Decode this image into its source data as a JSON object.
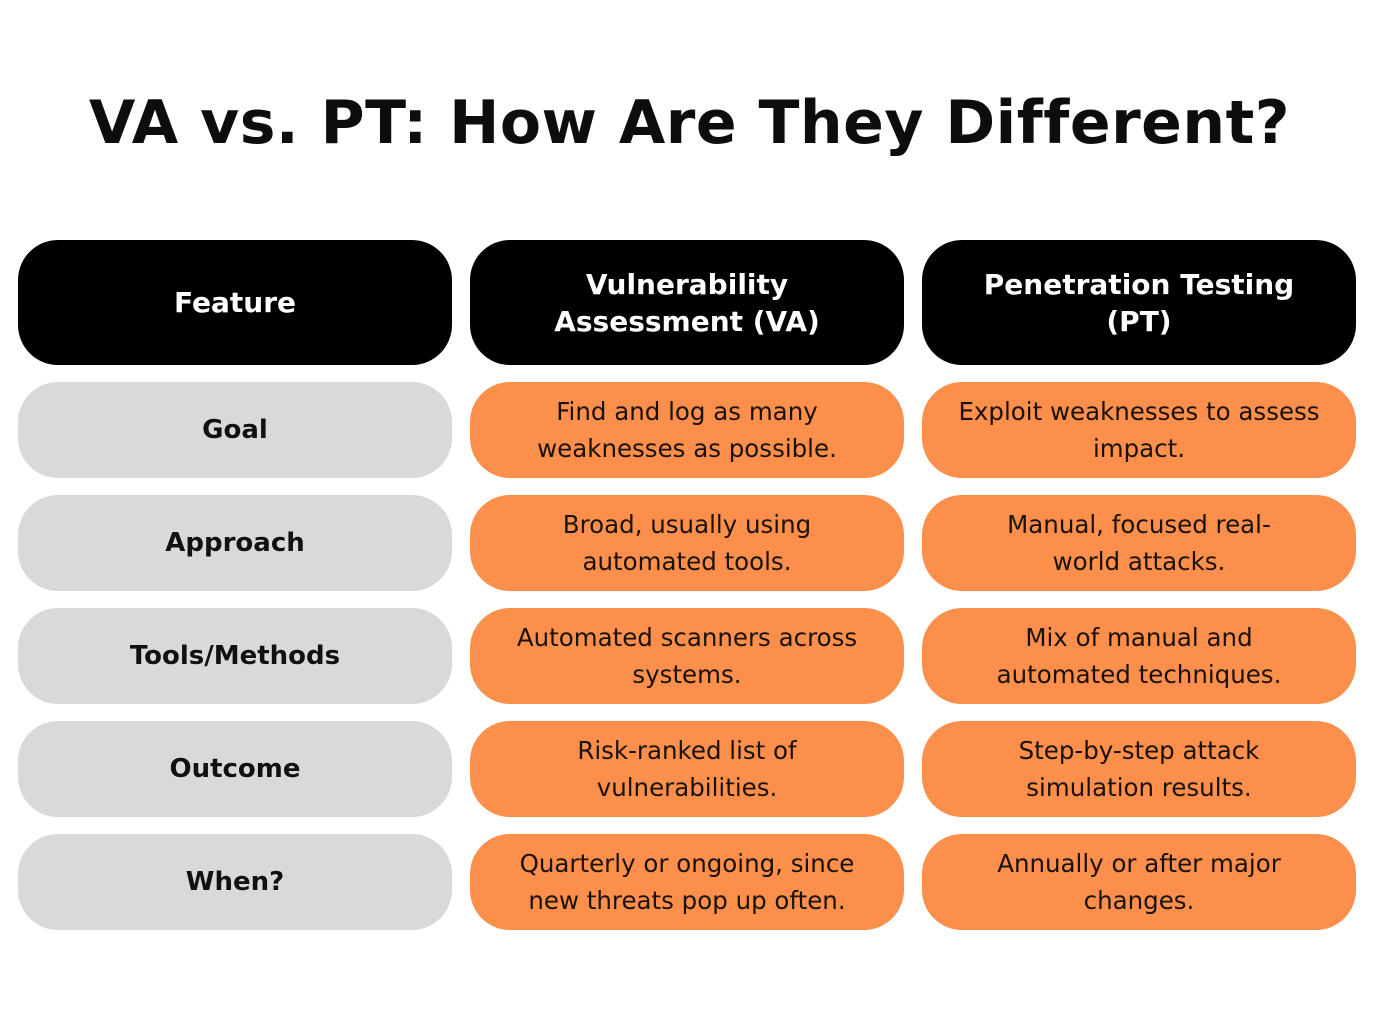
{
  "title": "VA vs. PT: How Are They Different?",
  "colors": {
    "header_bg": "#000000",
    "feature_bg": "#d9d9d9",
    "value_bg": "#fc8f4b"
  },
  "table": {
    "headers": [
      "Feature",
      "Vulnerability\nAssessment (VA)",
      "Penetration Testing\n(PT)"
    ],
    "rows": [
      {
        "feature": "Goal",
        "va": "Find and log as many\nweaknesses as possible.",
        "pt": "Exploit weaknesses to assess\nimpact."
      },
      {
        "feature": "Approach",
        "va": "Broad, usually using\nautomated tools.",
        "pt": "Manual, focused real-\nworld attacks."
      },
      {
        "feature": "Tools/Methods",
        "va": "Automated scanners across\nsystems.",
        "pt": "Mix of manual and\nautomated techniques."
      },
      {
        "feature": "Outcome",
        "va": "Risk-ranked list of\nvulnerabilities.",
        "pt": "Step-by-step attack\nsimulation results."
      },
      {
        "feature": "When?",
        "va": "Quarterly or ongoing, since\nnew threats pop up often.",
        "pt": "Annually or after major\nchanges."
      }
    ]
  }
}
